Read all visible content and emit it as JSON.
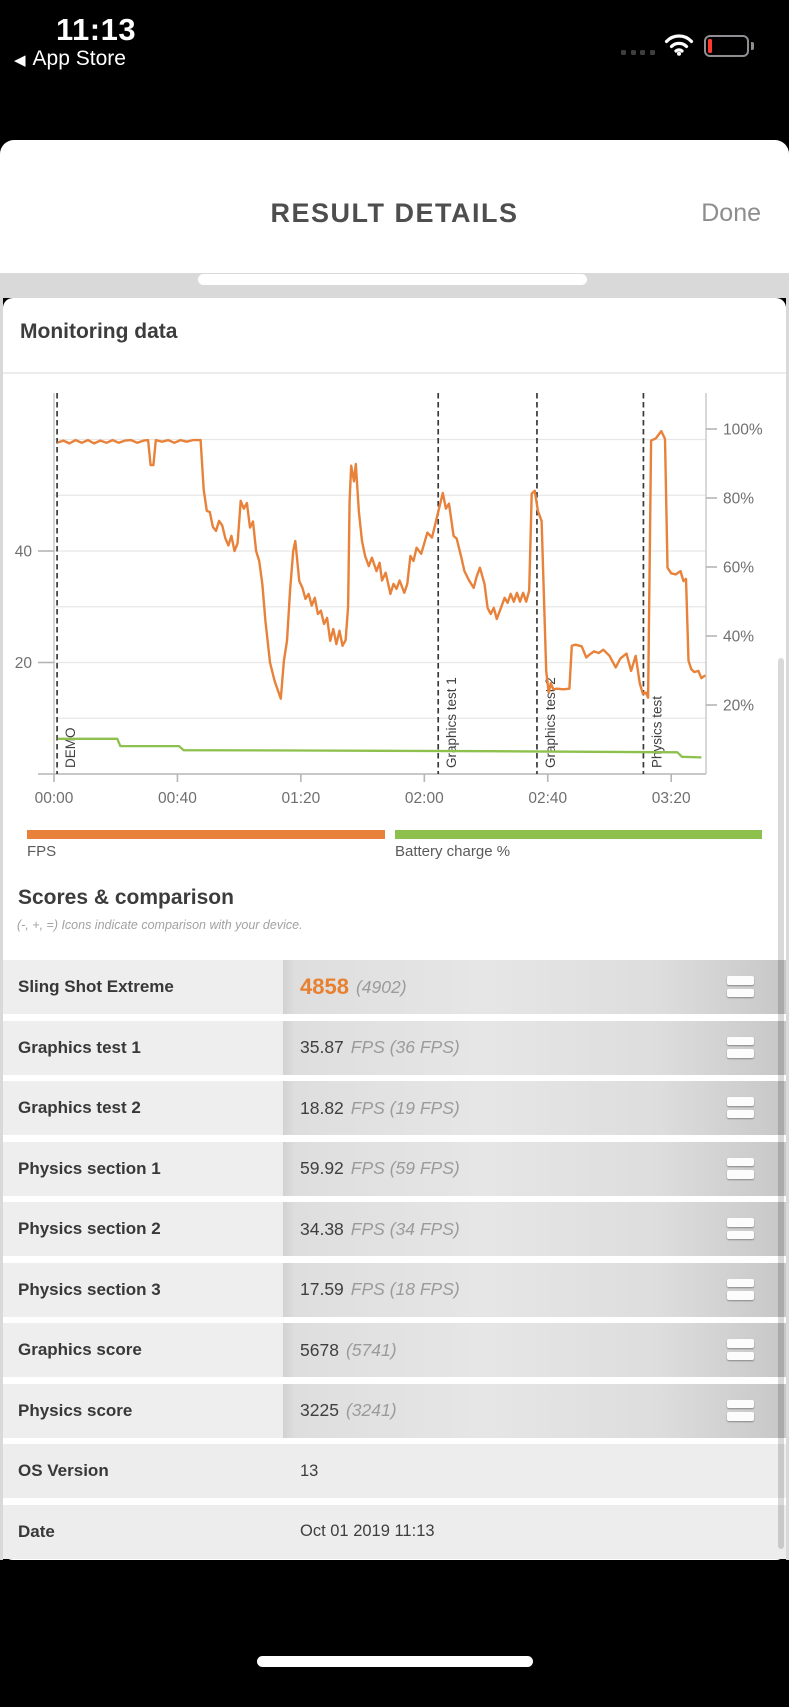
{
  "status_bar": {
    "time": "11:13",
    "back_label": "App Store",
    "back_arrow": "◀",
    "signal_dots": 4,
    "wifi_icon": "wifi-full",
    "battery_level_color": "#ff3b30"
  },
  "header": {
    "title": "RESULT DETAILS",
    "done_label": "Done"
  },
  "monitoring": {
    "title": "Monitoring data"
  },
  "chart_data": {
    "type": "line",
    "title": "Monitoring data",
    "x_axis": {
      "unit": "time mm:ss",
      "tick_labels": [
        "00:00",
        "00:40",
        "01:20",
        "02:00",
        "02:40",
        "03:20"
      ],
      "tick_seconds": [
        0,
        40,
        80,
        120,
        160,
        200
      ],
      "range_seconds": [
        -5.2,
        211.3
      ]
    },
    "left_axis": {
      "name": "FPS",
      "tick_labels": [
        "20",
        "40"
      ],
      "tick_values": [
        20,
        40
      ],
      "range": [
        0,
        68.3
      ],
      "gridlines_fps": [
        10,
        20,
        30,
        40,
        50,
        60
      ]
    },
    "right_axis": {
      "name": "Battery charge %",
      "tick_labels": [
        "20%",
        "40%",
        "60%",
        "80%",
        "100%"
      ],
      "tick_values": [
        20,
        40,
        60,
        80,
        100
      ],
      "range": [
        0,
        110.4
      ]
    },
    "sections": [
      {
        "label": "DEMO",
        "t": 1
      },
      {
        "label": "Graphics test 1",
        "t": 124.5
      },
      {
        "label": "Graphics test 2",
        "t": 156.5
      },
      {
        "label": "Physics test",
        "t": 191
      }
    ],
    "legend": [
      {
        "label": "FPS",
        "color": "#e8823a"
      },
      {
        "label": "Battery charge %",
        "color": "#8dc04c"
      }
    ],
    "series": [
      {
        "name": "FPS",
        "axis": "left",
        "color": "#e8823a",
        "points": [
          [
            1.5,
            59.5
          ],
          [
            3,
            59.8
          ],
          [
            5,
            59.3
          ],
          [
            7,
            59.9
          ],
          [
            9,
            59.4
          ],
          [
            11,
            59.9
          ],
          [
            13,
            59.3
          ],
          [
            15,
            59.8
          ],
          [
            17,
            59.4
          ],
          [
            19,
            59.9
          ],
          [
            21,
            59.4
          ],
          [
            23,
            59.8
          ],
          [
            25,
            59.9
          ],
          [
            27,
            59.4
          ],
          [
            29,
            59.8
          ],
          [
            30.5,
            59.9
          ],
          [
            31.3,
            55.4
          ],
          [
            32.2,
            55.4
          ],
          [
            33,
            59.9
          ],
          [
            35,
            59.6
          ],
          [
            37,
            59.9
          ],
          [
            39,
            59.4
          ],
          [
            41,
            59.9
          ],
          [
            43,
            59.6
          ],
          [
            45,
            59.9
          ],
          [
            47.5,
            59.9
          ],
          [
            48.5,
            51
          ],
          [
            49.5,
            47.2
          ],
          [
            50.5,
            47
          ],
          [
            51.5,
            44.3
          ],
          [
            52.5,
            43.6
          ],
          [
            53.5,
            45.4
          ],
          [
            54.5,
            44.6
          ],
          [
            55.5,
            42.3
          ],
          [
            56.5,
            41
          ],
          [
            57.5,
            42.7
          ],
          [
            58.5,
            40
          ],
          [
            59.5,
            41.4
          ],
          [
            60.5,
            49
          ],
          [
            61.5,
            47.6
          ],
          [
            62.5,
            48.6
          ],
          [
            63.5,
            44.2
          ],
          [
            64.5,
            45.3
          ],
          [
            65.5,
            40
          ],
          [
            66.5,
            38.2
          ],
          [
            67.5,
            34.1
          ],
          [
            68.5,
            27.5
          ],
          [
            70,
            20
          ],
          [
            71.5,
            16.7
          ],
          [
            73.5,
            13.5
          ],
          [
            74.5,
            20.3
          ],
          [
            75.5,
            23.9
          ],
          [
            76.5,
            33
          ],
          [
            77.5,
            40
          ],
          [
            78.2,
            41.8
          ],
          [
            79.5,
            34.6
          ],
          [
            80.5,
            33.4
          ],
          [
            81.5,
            31.4
          ],
          [
            82.5,
            32.3
          ],
          [
            83.5,
            30.2
          ],
          [
            84.5,
            31.6
          ],
          [
            85.5,
            28.7
          ],
          [
            86.5,
            29.3
          ],
          [
            87.5,
            26.9
          ],
          [
            88.5,
            28
          ],
          [
            89.5,
            23.9
          ],
          [
            90.5,
            26
          ],
          [
            91.5,
            23.3
          ],
          [
            92.5,
            25.7
          ],
          [
            93.5,
            23
          ],
          [
            94.5,
            24
          ],
          [
            95.3,
            30
          ],
          [
            95.8,
            49
          ],
          [
            96.3,
            55.3
          ],
          [
            97.2,
            52.5
          ],
          [
            97.8,
            55.6
          ],
          [
            98.8,
            47
          ],
          [
            99.8,
            41.8
          ],
          [
            100.8,
            39.1
          ],
          [
            102,
            37.3
          ],
          [
            103,
            38.8
          ],
          [
            104.5,
            36.4
          ],
          [
            105.5,
            37.9
          ],
          [
            106.3,
            34.7
          ],
          [
            107.5,
            36.1
          ],
          [
            109,
            32.3
          ],
          [
            110,
            34.1
          ],
          [
            111,
            33.2
          ],
          [
            112,
            34.7
          ],
          [
            113.5,
            32.5
          ],
          [
            114.5,
            34.1
          ],
          [
            115.5,
            39.1
          ],
          [
            116.5,
            38.2
          ],
          [
            117.5,
            40.6
          ],
          [
            119,
            39.5
          ],
          [
            121,
            43.3
          ],
          [
            122.5,
            42.4
          ],
          [
            126,
            50.4
          ],
          [
            127,
            47.6
          ],
          [
            128,
            48.5
          ],
          [
            129.5,
            42.7
          ],
          [
            130.5,
            42.2
          ],
          [
            132,
            38.8
          ],
          [
            133,
            36.4
          ],
          [
            134.5,
            34.7
          ],
          [
            136,
            33.4
          ],
          [
            137,
            35.5
          ],
          [
            138,
            37
          ],
          [
            139.5,
            34.1
          ],
          [
            140.5,
            29.8
          ],
          [
            141.5,
            28.7
          ],
          [
            142.5,
            29.8
          ],
          [
            143.5,
            27.8
          ],
          [
            144.5,
            29.3
          ],
          [
            146,
            31.6
          ],
          [
            147,
            30.7
          ],
          [
            148,
            32.3
          ],
          [
            149,
            30.9
          ],
          [
            150,
            32.5
          ],
          [
            151,
            30.9
          ],
          [
            152,
            32.5
          ],
          [
            153,
            30.9
          ],
          [
            154,
            32.9
          ],
          [
            154.8,
            50.3
          ],
          [
            155.8,
            50.8
          ],
          [
            156.8,
            47.2
          ],
          [
            158,
            45.4
          ],
          [
            159.5,
            18.5
          ],
          [
            160.3,
            14.6
          ],
          [
            161,
            16.3
          ],
          [
            161.8,
            15.2
          ],
          [
            163,
            15.3
          ],
          [
            165,
            15.2
          ],
          [
            167,
            15.3
          ],
          [
            167.8,
            23
          ],
          [
            169,
            23.2
          ],
          [
            171,
            22.9
          ],
          [
            172.5,
            20.9
          ],
          [
            173.5,
            21.4
          ],
          [
            175,
            22
          ],
          [
            176.5,
            21.7
          ],
          [
            178,
            22.3
          ],
          [
            180,
            21.2
          ],
          [
            182,
            19.1
          ],
          [
            183.5,
            20.7
          ],
          [
            185.5,
            21.6
          ],
          [
            187,
            18.5
          ],
          [
            188.5,
            21.2
          ],
          [
            189.8,
            16.3
          ],
          [
            190.8,
            14.4
          ],
          [
            191.8,
            14.6
          ],
          [
            192.5,
            13.7
          ],
          [
            193.5,
            59.8
          ],
          [
            195,
            60.2
          ],
          [
            196.8,
            61.5
          ],
          [
            198,
            60.1
          ],
          [
            198.8,
            37
          ],
          [
            200,
            36
          ],
          [
            201.5,
            35.8
          ],
          [
            203,
            36.4
          ],
          [
            204,
            34.6
          ],
          [
            204.8,
            35
          ],
          [
            205.6,
            20.3
          ],
          [
            206.5,
            18.8
          ],
          [
            207.5,
            18.3
          ],
          [
            208.8,
            18.5
          ],
          [
            209.8,
            17.2
          ],
          [
            210.8,
            17.6
          ]
        ]
      },
      {
        "name": "Battery charge %",
        "axis": "right",
        "color": "#8dc04c",
        "points": [
          [
            1.5,
            10.2
          ],
          [
            20.5,
            10.2
          ],
          [
            21.5,
            8.1
          ],
          [
            40.5,
            8.1
          ],
          [
            42,
            6.9
          ],
          [
            80,
            6.8
          ],
          [
            140,
            6.6
          ],
          [
            202,
            6.3
          ],
          [
            203.5,
            5
          ],
          [
            209.5,
            4.8
          ]
        ]
      }
    ]
  },
  "scores": {
    "title": "Scores & comparison",
    "subtitle": "(-, +, =) Icons indicate comparison with your device.",
    "accent_color": "#e8802f",
    "rows": [
      {
        "label": "Sling Shot Extreme",
        "value": "4858",
        "extra": "(4902)",
        "highlight": true,
        "icon": "equal"
      },
      {
        "label": "Graphics test 1",
        "value": "35.87",
        "extra": "FPS (36 FPS)",
        "highlight": false,
        "icon": "equal"
      },
      {
        "label": "Graphics test 2",
        "value": "18.82",
        "extra": "FPS (19 FPS)",
        "highlight": false,
        "icon": "equal"
      },
      {
        "label": "Physics section 1",
        "value": "59.92",
        "extra": "FPS (59 FPS)",
        "highlight": false,
        "icon": "equal"
      },
      {
        "label": "Physics section 2",
        "value": "34.38",
        "extra": "FPS (34 FPS)",
        "highlight": false,
        "icon": "equal"
      },
      {
        "label": "Physics section 3",
        "value": "17.59",
        "extra": "FPS (18 FPS)",
        "highlight": false,
        "icon": "equal"
      },
      {
        "label": "Graphics score",
        "value": "5678",
        "extra": "(5741)",
        "highlight": false,
        "icon": "equal"
      },
      {
        "label": "Physics score",
        "value": "3225",
        "extra": "(3241)",
        "highlight": false,
        "icon": "equal"
      },
      {
        "label": "OS Version",
        "value": "13",
        "extra": "",
        "highlight": false,
        "icon": null
      },
      {
        "label": "Date",
        "value": "Oct 01 2019 11:13",
        "extra": "",
        "highlight": false,
        "icon": null
      }
    ]
  }
}
